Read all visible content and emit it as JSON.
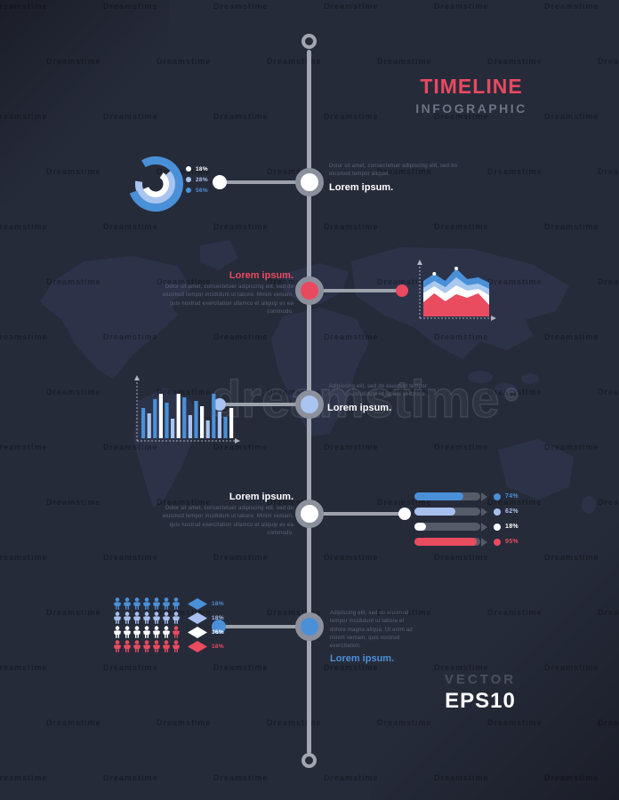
{
  "title": {
    "main": "TIMELINE",
    "sub": "INFOGRAPHIC"
  },
  "footer": {
    "label": "VECTOR",
    "sublabel": "EPS10"
  },
  "watermark": {
    "big": "dreamstime",
    "mark": "©",
    "tile": "Dreamstime"
  },
  "colors": {
    "background": "#262b3a",
    "accent_pink": "#e9495f",
    "accent_blue": "#4a90d8",
    "accent_light_blue": "#a9c4ef",
    "white": "#ffffff",
    "timeline_gray": "#a2a6b0",
    "ring_gray": "#8b909c",
    "text_gray": "#5d6476",
    "track_gray": "#555b69",
    "map": "#333b58"
  },
  "nodes": [
    {
      "heading": "Lorem ipsum.",
      "heading_color": "#ffffff",
      "node_fill": "#ffffff",
      "dot_fill": "#ffffff",
      "body": "Dolor sit amet, consectetuer adipiscing elit, sed do eiusmod tempor aliquet.",
      "chart": "donut",
      "chart_side": "left",
      "text_side": "right"
    },
    {
      "heading": "Lorem ipsum.",
      "heading_color": "#e9495f",
      "node_fill": "#e9495f",
      "dot_fill": "#e9495f",
      "body": "Dolor sit amet, consectetuer adipiscing elit, sed do eiusmod tempor incididunt ut labore. Minim veniam, quis nostrud exercitation ullamco et aliquip ex ea commodo.",
      "chart": "area",
      "chart_side": "right",
      "text_side": "left"
    },
    {
      "heading": "Lorem ipsum.",
      "heading_color": "#ffffff",
      "node_fill": "#a9c4ef",
      "dot_fill": "#a9c4ef",
      "body": "Adipiscing elit, sed do eiusmod tempor incididunt ut labore et dolore.",
      "chart": "bar",
      "chart_side": "left",
      "text_side": "right"
    },
    {
      "heading": "Lorem ipsum.",
      "heading_color": "#ffffff",
      "node_fill": "#ffffff",
      "dot_fill": "#ffffff",
      "body": "Dolor sit amet, consectetuer adipiscing elit, sed do eiusmod tempor incididunt ut labore. Minim veniam, quis nostrud exercitation ullamco et aliquip ex ea commodo.",
      "chart": "progress",
      "chart_side": "right",
      "text_side": "left"
    },
    {
      "heading": "Lorem ipsum.",
      "heading_color": "#4a90d8",
      "node_fill": "#4a90d8",
      "dot_fill": "#4a90d8",
      "body": "Adipiscing elit, sed do eiusmod tempor incididunt ut labore et dolore magna aliqua. Ut enim ad minim veniam, quis nostrud exercitation.",
      "chart": "pictograph",
      "chart_side": "left",
      "text_side": "right"
    }
  ],
  "chart_data": [
    {
      "type": "pie",
      "subtype": "concentric-donut-rings",
      "labels": [
        "18%",
        "28%",
        "56%"
      ],
      "values": [
        18,
        28,
        56
      ],
      "colors": [
        "#ffffff",
        "#a9c4ef",
        "#4a90d8"
      ],
      "legend_position": "right"
    },
    {
      "type": "area",
      "stacked": true,
      "x": [
        0,
        1,
        2,
        3,
        4,
        5,
        6
      ],
      "ylim": [
        0,
        60
      ],
      "grid": false,
      "axes": "dashed-arrows",
      "point_markers": [
        1,
        3
      ],
      "series": [
        {
          "name": "blue",
          "color": "#4a90d8",
          "values": [
            40,
            48,
            40,
            54,
            42,
            44,
            38
          ]
        },
        {
          "name": "light-blue",
          "color": "#a9c8ef",
          "values": [
            32,
            40,
            33,
            44,
            35,
            37,
            31
          ]
        },
        {
          "name": "white",
          "color": "#ffffff",
          "values": [
            26,
            34,
            26,
            35,
            29,
            31,
            24
          ]
        },
        {
          "name": "red",
          "color": "#e94b5f",
          "values": [
            16,
            26,
            17,
            25,
            21,
            26,
            13
          ]
        }
      ]
    },
    {
      "type": "bar",
      "ylim": [
        0,
        56
      ],
      "axes": "dashed-arrows",
      "values": [
        34,
        28,
        44,
        50,
        40,
        22,
        50,
        46,
        26,
        42,
        36,
        20,
        50,
        30,
        24,
        34
      ],
      "colors": [
        "#4a90d8",
        "#a9c4ef",
        "#4a90d8",
        "#ffffff",
        "#4a90d8",
        "#a9c4ef",
        "#ffffff",
        "#4a90d8",
        "#a9c4ef",
        "#4a90d8",
        "#ffffff",
        "#a9c4ef",
        "#4a90d8",
        "#a9c4ef",
        "#4a90d8",
        "#ffffff"
      ]
    },
    {
      "type": "hbar-progress",
      "track_color": "#555b69",
      "items": [
        {
          "label": "74%",
          "value": 74,
          "color": "#4a90d8"
        },
        {
          "label": "62%",
          "value": 62,
          "color": "#a9c0ee"
        },
        {
          "label": "18%",
          "value": 18,
          "color": "#ffffff"
        },
        {
          "label": "95%",
          "value": 95,
          "color": "#e94b5f"
        }
      ]
    },
    {
      "type": "pictograph",
      "icon": "person",
      "legend_shape": "diamond",
      "rows": [
        {
          "label": "18%",
          "count": 7,
          "color": "#4a90d8"
        },
        {
          "label": "18%",
          "count": 7,
          "color": "#a9c0ee"
        },
        {
          "label": "36%",
          "count": 7,
          "color": "#ffffff",
          "last_color": "#e94b5f"
        },
        {
          "label": "18%",
          "count": 7,
          "color": "#e94b5f"
        }
      ]
    }
  ]
}
